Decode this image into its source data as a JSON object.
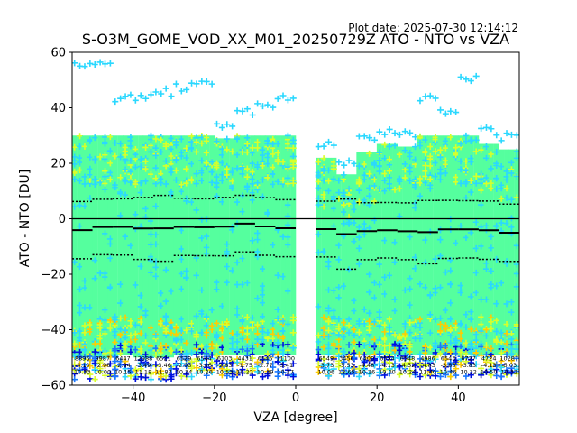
{
  "plot_date": "Plot date: 2025-07-30 12:14:12",
  "colors": {
    "bulk": "#55ff9e",
    "cyan": "#2ad8ff",
    "mid_blue": "#1a78ff",
    "dark_blue": "#0010e0",
    "yellow": "#d8ff2a",
    "orange": "#ffcc00",
    "line": "#000000"
  },
  "chart_data": {
    "type": "scatter",
    "title": "S-O3M_GOME_VOD_XX_M01_20250729Z ATO - NTO vs VZA",
    "xlabel": "VZA [degree]",
    "ylabel": "ATO - NTO [DU]",
    "xlim": [
      -55,
      55
    ],
    "ylim": [
      -60,
      60
    ],
    "xticks": [
      -40,
      -20,
      0,
      20,
      40
    ],
    "yticks": [
      -60,
      -40,
      -20,
      0,
      20,
      40,
      60
    ],
    "zero_line": 0,
    "grid": false,
    "legend": "none",
    "bins": [
      {
        "x": -52.5,
        "mean": -4.1,
        "std": 10.33,
        "count": "8896",
        "mean_label": "-4.10",
        "std_label": "10.33",
        "top": 57,
        "bottom": -58
      },
      {
        "x": -47.5,
        "mean": -2.96,
        "std": 10.0,
        "count": "9987",
        "mean_label": "-2.96",
        "std_label": "10.00",
        "top": 57,
        "bottom": -58
      },
      {
        "x": -42.5,
        "mean": -2.94,
        "std": 10.15,
        "count": "6447",
        "mean_label": "-2.94",
        "std_label": "10.15",
        "top": 45,
        "bottom": -57
      },
      {
        "x": -37.5,
        "mean": -3.49,
        "std": 11.18,
        "count": "12988",
        "mean_label": "-3.49",
        "std_label": "11.18",
        "top": 45,
        "bottom": -58
      },
      {
        "x": -32.5,
        "mean": -3.46,
        "std": 11.87,
        "count": "6521",
        "mean_label": "-3.46",
        "std_label": "11.87",
        "top": 47,
        "bottom": -58
      },
      {
        "x": -27.5,
        "mean": -2.93,
        "std": 10.34,
        "count": "6529",
        "mean_label": "-2.93",
        "std_label": "10.34",
        "top": 49,
        "bottom": -57
      },
      {
        "x": -22.5,
        "mean": -3.06,
        "std": 10.26,
        "count": "6544",
        "mean_label": "-3.06",
        "std_label": "10.26",
        "top": 50,
        "bottom": -57
      },
      {
        "x": -17.5,
        "mean": -2.83,
        "std": 10.53,
        "count": "6103",
        "mean_label": "-2.83",
        "std_label": "10.53",
        "top": 35,
        "bottom": -57
      },
      {
        "x": -12.5,
        "mean": -1.75,
        "std": 10.22,
        "count": "4431",
        "mean_label": "-1.75",
        "std_label": "10.22",
        "top": 40,
        "bottom": -57
      },
      {
        "x": -7.5,
        "mean": -2.77,
        "std": 10.39,
        "count": "6546",
        "mean_label": "-2.77",
        "std_label": "10.39",
        "top": 43,
        "bottom": -57
      },
      {
        "x": -2.5,
        "mean": -3.41,
        "std": 10.27,
        "count": "11100",
        "mean_label": "-3.41",
        "std_label": "10.27",
        "top": 45,
        "bottom": -57
      },
      {
        "x": 7.5,
        "mean": -3.73,
        "std": 10.06,
        "count": "6549",
        "mean_label": "-3.73",
        "std_label": "10.06",
        "top": 28,
        "bottom": -57
      },
      {
        "x": 12.5,
        "mean": -5.53,
        "std": 12.65,
        "count": "3456",
        "mean_label": "-5.53",
        "std_label": "12.65",
        "top": 22,
        "bottom": -57
      },
      {
        "x": 17.5,
        "mean": -4.48,
        "std": 10.26,
        "count": "6400",
        "mean_label": "-4.48",
        "std_label": "10.26",
        "top": 30,
        "bottom": -57
      },
      {
        "x": 22.5,
        "mean": -4.13,
        "std": 10.0,
        "count": "6554",
        "mean_label": "-4.13",
        "std_label": "10.00",
        "top": 33,
        "bottom": -57
      },
      {
        "x": 27.5,
        "mean": -4.52,
        "std": 10.24,
        "count": "6548",
        "mean_label": "-4.52",
        "std_label": "10.24",
        "top": 32,
        "bottom": -57
      },
      {
        "x": 32.5,
        "mean": -4.83,
        "std": 11.4,
        "count": "4986",
        "mean_label": "-4.83",
        "std_label": "11.40",
        "top": 45,
        "bottom": -57
      },
      {
        "x": 37.5,
        "mean": -3.83,
        "std": 10.46,
        "count": "6543",
        "mean_label": "-3.83",
        "std_label": "10.46",
        "top": 40,
        "bottom": -57
      },
      {
        "x": 42.5,
        "mean": -3.83,
        "std": 10.32,
        "count": "6727",
        "mean_label": "-3.83",
        "std_label": "10.32",
        "top": 52,
        "bottom": -57
      },
      {
        "x": 47.5,
        "mean": -4.13,
        "std": 10.5,
        "count": "4724",
        "mean_label": "-4.13",
        "std_label": "10.50",
        "top": 33,
        "bottom": -57
      },
      {
        "x": 52.5,
        "mean": -5.03,
        "std": 10.32,
        "count": "10287",
        "mean_label": "-5.03",
        "std_label": "10.32",
        "top": 31,
        "bottom": -57
      }
    ]
  }
}
